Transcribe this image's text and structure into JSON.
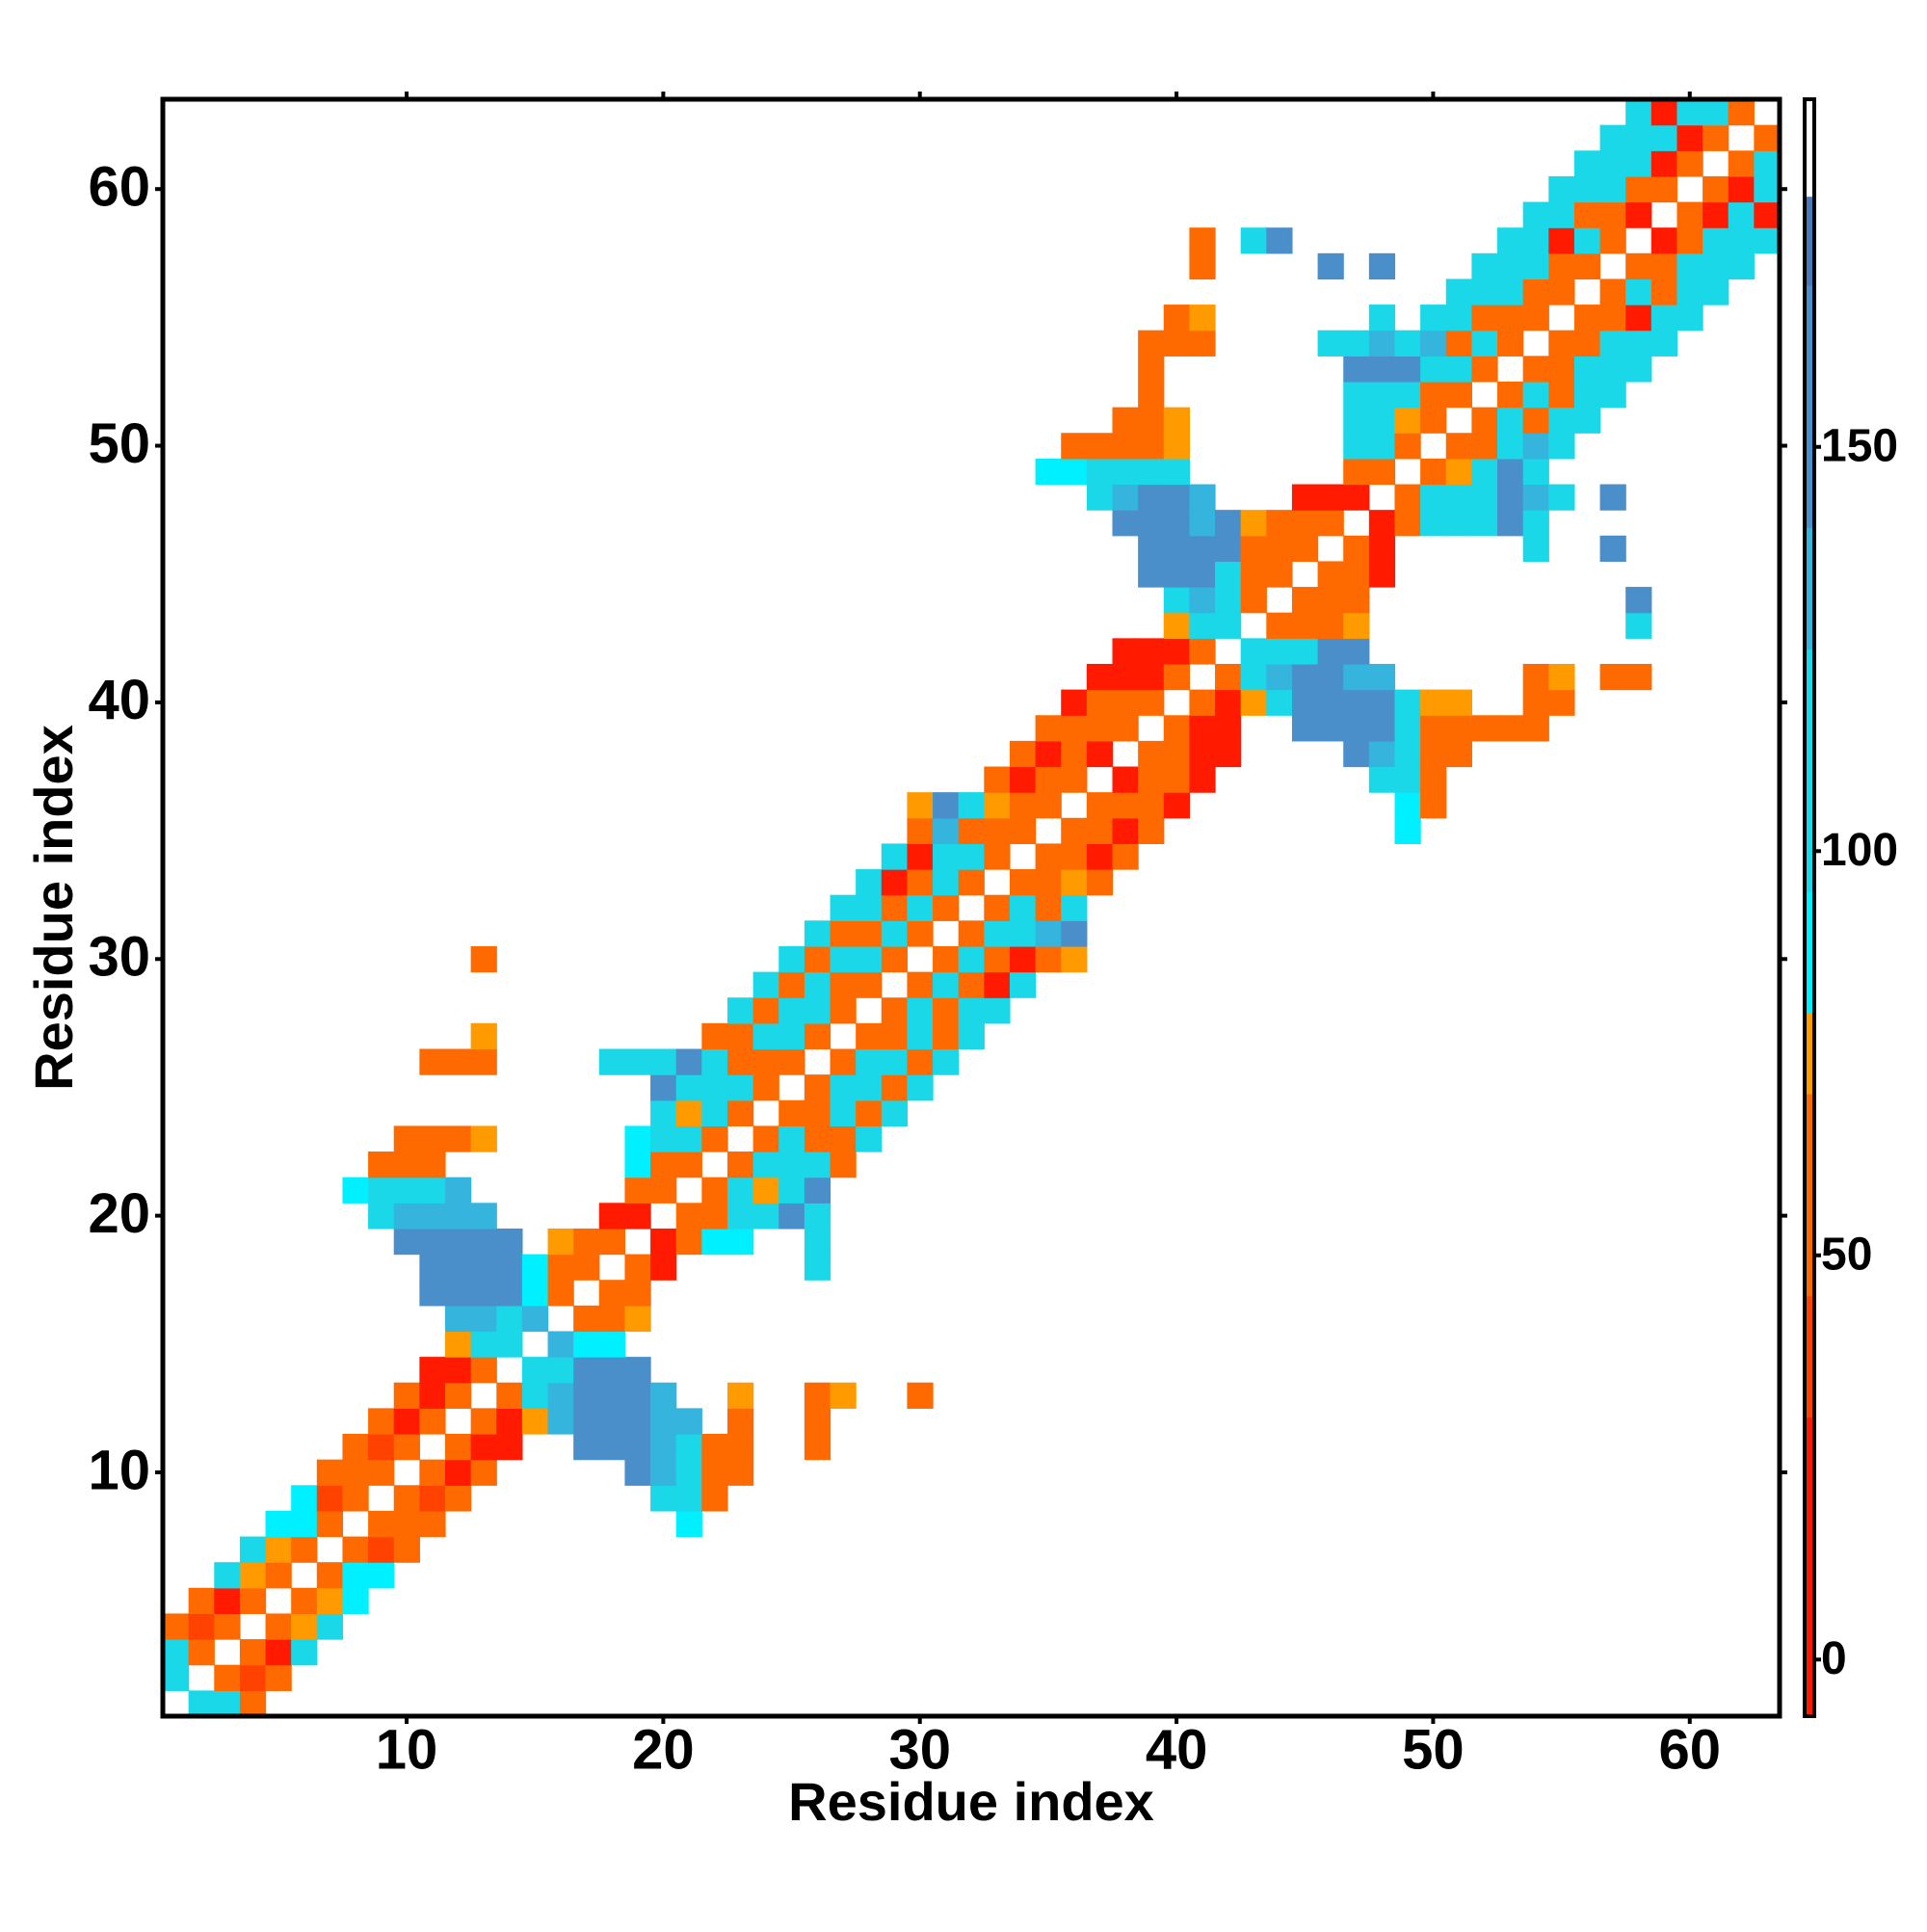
{
  "chart_data": {
    "type": "heatmap",
    "x_label": "Residue index",
    "y_label": "Residue index",
    "xlim": [
      0.5,
      63.5
    ],
    "ylim": [
      0.5,
      63.5
    ],
    "xticks": [
      10,
      20,
      30,
      40,
      50,
      60
    ],
    "yticks": [
      10,
      20,
      30,
      40,
      50,
      60
    ],
    "symmetric": true,
    "colorbar": {
      "lim": [
        -7,
        193
      ],
      "ticks": [
        0,
        50,
        100,
        150
      ],
      "bands": [
        {
          "from": -7,
          "to": 30,
          "color": "#ff1a00"
        },
        {
          "from": 30,
          "to": 45,
          "color": "#ff4200"
        },
        {
          "from": 45,
          "to": 70,
          "color": "#ff6a00"
        },
        {
          "from": 70,
          "to": 80,
          "color": "#ff9a00"
        },
        {
          "from": 80,
          "to": 95,
          "color": "#00f0ff"
        },
        {
          "from": 95,
          "to": 125,
          "color": "#1ad8e8"
        },
        {
          "from": 125,
          "to": 140,
          "color": "#35b4de"
        },
        {
          "from": 140,
          "to": 170,
          "color": "#4a8fca"
        },
        {
          "from": 170,
          "to": 181,
          "color": "#4a78b8"
        },
        {
          "from": 181,
          "to": 193,
          "color": "#ffffff"
        }
      ]
    },
    "cells": [
      [
        1,
        2,
        110
      ],
      [
        1,
        3,
        110
      ],
      [
        1,
        4,
        55
      ],
      [
        2,
        3,
        55
      ],
      [
        2,
        4,
        38
      ],
      [
        2,
        5,
        55
      ],
      [
        3,
        4,
        55
      ],
      [
        3,
        5,
        15
      ],
      [
        3,
        6,
        110
      ],
      [
        4,
        5,
        55
      ],
      [
        4,
        6,
        75
      ],
      [
        4,
        7,
        110
      ],
      [
        5,
        6,
        55
      ],
      [
        5,
        7,
        75
      ],
      [
        5,
        8,
        90
      ],
      [
        6,
        7,
        55
      ],
      [
        6,
        8,
        90
      ],
      [
        6,
        9,
        90
      ],
      [
        7,
        8,
        55
      ],
      [
        7,
        9,
        38
      ],
      [
        7,
        10,
        55
      ],
      [
        8,
        9,
        55
      ],
      [
        8,
        10,
        55
      ],
      [
        8,
        11,
        55
      ],
      [
        8,
        21,
        90
      ],
      [
        9,
        10,
        55
      ],
      [
        9,
        11,
        38
      ],
      [
        9,
        12,
        55
      ],
      [
        9,
        20,
        110
      ],
      [
        9,
        21,
        110
      ],
      [
        9,
        22,
        55
      ],
      [
        10,
        11,
        55
      ],
      [
        10,
        12,
        15
      ],
      [
        10,
        13,
        55
      ],
      [
        10,
        19,
        155
      ],
      [
        10,
        20,
        130
      ],
      [
        10,
        21,
        110
      ],
      [
        10,
        22,
        55
      ],
      [
        10,
        23,
        55
      ],
      [
        11,
        12,
        55
      ],
      [
        11,
        13,
        15
      ],
      [
        11,
        14,
        15
      ],
      [
        11,
        17,
        155
      ],
      [
        11,
        18,
        155
      ],
      [
        11,
        19,
        155
      ],
      [
        11,
        20,
        130
      ],
      [
        11,
        21,
        110
      ],
      [
        11,
        22,
        55
      ],
      [
        11,
        23,
        55
      ],
      [
        11,
        26,
        55
      ],
      [
        12,
        13,
        55
      ],
      [
        12,
        14,
        15
      ],
      [
        12,
        15,
        75
      ],
      [
        12,
        16,
        130
      ],
      [
        12,
        17,
        155
      ],
      [
        12,
        18,
        155
      ],
      [
        12,
        19,
        155
      ],
      [
        12,
        20,
        130
      ],
      [
        12,
        21,
        130
      ],
      [
        12,
        23,
        55
      ],
      [
        12,
        26,
        55
      ],
      [
        13,
        14,
        55
      ],
      [
        13,
        15,
        110
      ],
      [
        13,
        16,
        130
      ],
      [
        13,
        17,
        155
      ],
      [
        13,
        18,
        155
      ],
      [
        13,
        19,
        155
      ],
      [
        13,
        20,
        130
      ],
      [
        13,
        23,
        75
      ],
      [
        13,
        26,
        55
      ],
      [
        13,
        27,
        75
      ],
      [
        13,
        30,
        55
      ],
      [
        14,
        15,
        110
      ],
      [
        14,
        16,
        110
      ],
      [
        14,
        17,
        155
      ],
      [
        14,
        18,
        155
      ],
      [
        14,
        19,
        155
      ],
      [
        15,
        16,
        130
      ],
      [
        15,
        17,
        90
      ],
      [
        15,
        18,
        90
      ],
      [
        16,
        17,
        55
      ],
      [
        16,
        18,
        55
      ],
      [
        16,
        19,
        75
      ],
      [
        17,
        18,
        55
      ],
      [
        17,
        19,
        55
      ],
      [
        18,
        19,
        55
      ],
      [
        18,
        20,
        15
      ],
      [
        18,
        26,
        110
      ],
      [
        19,
        20,
        15
      ],
      [
        19,
        21,
        55
      ],
      [
        19,
        22,
        90
      ],
      [
        19,
        23,
        90
      ],
      [
        19,
        26,
        110
      ],
      [
        20,
        21,
        55
      ],
      [
        20,
        22,
        55
      ],
      [
        20,
        23,
        110
      ],
      [
        20,
        24,
        110
      ],
      [
        20,
        25,
        155
      ],
      [
        20,
        26,
        110
      ],
      [
        21,
        22,
        55
      ],
      [
        21,
        23,
        110
      ],
      [
        21,
        24,
        75
      ],
      [
        21,
        25,
        110
      ],
      [
        21,
        26,
        155
      ],
      [
        22,
        23,
        55
      ],
      [
        22,
        24,
        110
      ],
      [
        22,
        25,
        110
      ],
      [
        22,
        26,
        110
      ],
      [
        22,
        27,
        55
      ],
      [
        23,
        24,
        55
      ],
      [
        23,
        25,
        110
      ],
      [
        23,
        26,
        55
      ],
      [
        23,
        27,
        55
      ],
      [
        23,
        28,
        110
      ],
      [
        24,
        25,
        55
      ],
      [
        24,
        26,
        55
      ],
      [
        24,
        27,
        110
      ],
      [
        24,
        28,
        55
      ],
      [
        24,
        29,
        110
      ],
      [
        25,
        26,
        55
      ],
      [
        25,
        27,
        110
      ],
      [
        25,
        28,
        110
      ],
      [
        25,
        29,
        55
      ],
      [
        25,
        30,
        110
      ],
      [
        26,
        27,
        55
      ],
      [
        26,
        28,
        110
      ],
      [
        26,
        29,
        110
      ],
      [
        26,
        30,
        55
      ],
      [
        26,
        31,
        110
      ],
      [
        27,
        28,
        55
      ],
      [
        27,
        29,
        55
      ],
      [
        27,
        30,
        110
      ],
      [
        27,
        31,
        55
      ],
      [
        27,
        32,
        110
      ],
      [
        28,
        29,
        55
      ],
      [
        28,
        30,
        110
      ],
      [
        28,
        31,
        55
      ],
      [
        28,
        32,
        110
      ],
      [
        28,
        33,
        110
      ],
      [
        29,
        30,
        55
      ],
      [
        29,
        31,
        110
      ],
      [
        29,
        32,
        55
      ],
      [
        29,
        33,
        15
      ],
      [
        29,
        34,
        110
      ],
      [
        30,
        31,
        55
      ],
      [
        30,
        32,
        110
      ],
      [
        30,
        33,
        55
      ],
      [
        30,
        34,
        15
      ],
      [
        30,
        35,
        55
      ],
      [
        30,
        36,
        75
      ],
      [
        31,
        32,
        55
      ],
      [
        31,
        33,
        110
      ],
      [
        31,
        34,
        110
      ],
      [
        31,
        35,
        130
      ],
      [
        31,
        36,
        155
      ],
      [
        32,
        33,
        55
      ],
      [
        32,
        34,
        110
      ],
      [
        32,
        35,
        55
      ],
      [
        32,
        36,
        110
      ],
      [
        33,
        34,
        55
      ],
      [
        33,
        35,
        55
      ],
      [
        33,
        36,
        75
      ],
      [
        33,
        37,
        55
      ],
      [
        34,
        35,
        55
      ],
      [
        34,
        36,
        55
      ],
      [
        34,
        37,
        15
      ],
      [
        34,
        38,
        55
      ],
      [
        35,
        36,
        55
      ],
      [
        35,
        37,
        55
      ],
      [
        35,
        38,
        15
      ],
      [
        35,
        39,
        55
      ],
      [
        35,
        49,
        90
      ],
      [
        36,
        37,
        55
      ],
      [
        36,
        38,
        55
      ],
      [
        36,
        39,
        55
      ],
      [
        36,
        40,
        15
      ],
      [
        36,
        49,
        90
      ],
      [
        36,
        50,
        55
      ],
      [
        37,
        38,
        15
      ],
      [
        37,
        39,
        55
      ],
      [
        37,
        40,
        55
      ],
      [
        37,
        41,
        15
      ],
      [
        37,
        48,
        110
      ],
      [
        37,
        49,
        110
      ],
      [
        37,
        50,
        55
      ],
      [
        38,
        39,
        55
      ],
      [
        38,
        40,
        55
      ],
      [
        38,
        41,
        15
      ],
      [
        38,
        42,
        15
      ],
      [
        38,
        47,
        155
      ],
      [
        38,
        48,
        130
      ],
      [
        38,
        49,
        110
      ],
      [
        38,
        50,
        55
      ],
      [
        38,
        51,
        55
      ],
      [
        39,
        40,
        55
      ],
      [
        39,
        41,
        15
      ],
      [
        39,
        42,
        15
      ],
      [
        39,
        45,
        155
      ],
      [
        39,
        46,
        155
      ],
      [
        39,
        47,
        155
      ],
      [
        39,
        48,
        155
      ],
      [
        39,
        49,
        110
      ],
      [
        39,
        50,
        55
      ],
      [
        39,
        51,
        55
      ],
      [
        39,
        52,
        55
      ],
      [
        39,
        53,
        55
      ],
      [
        39,
        54,
        55
      ],
      [
        40,
        41,
        55
      ],
      [
        40,
        42,
        15
      ],
      [
        40,
        43,
        75
      ],
      [
        40,
        44,
        110
      ],
      [
        40,
        45,
        155
      ],
      [
        40,
        46,
        155
      ],
      [
        40,
        47,
        155
      ],
      [
        40,
        48,
        155
      ],
      [
        40,
        49,
        110
      ],
      [
        40,
        50,
        75
      ],
      [
        40,
        51,
        75
      ],
      [
        40,
        54,
        55
      ],
      [
        40,
        55,
        55
      ],
      [
        41,
        42,
        55
      ],
      [
        41,
        43,
        110
      ],
      [
        41,
        44,
        130
      ],
      [
        41,
        45,
        155
      ],
      [
        41,
        46,
        155
      ],
      [
        41,
        47,
        130
      ],
      [
        41,
        48,
        130
      ],
      [
        41,
        54,
        55
      ],
      [
        41,
        55,
        75
      ],
      [
        41,
        57,
        55
      ],
      [
        41,
        58,
        55
      ],
      [
        42,
        43,
        110
      ],
      [
        42,
        44,
        110
      ],
      [
        42,
        45,
        110
      ],
      [
        42,
        46,
        155
      ],
      [
        42,
        47,
        155
      ],
      [
        43,
        44,
        55
      ],
      [
        43,
        45,
        55
      ],
      [
        43,
        46,
        55
      ],
      [
        43,
        47,
        75
      ],
      [
        43,
        58,
        110
      ],
      [
        44,
        45,
        55
      ],
      [
        44,
        46,
        55
      ],
      [
        44,
        47,
        55
      ],
      [
        44,
        58,
        155
      ],
      [
        45,
        46,
        55
      ],
      [
        45,
        47,
        55
      ],
      [
        45,
        48,
        15
      ],
      [
        46,
        47,
        55
      ],
      [
        46,
        48,
        15
      ],
      [
        46,
        54,
        110
      ],
      [
        46,
        57,
        155
      ],
      [
        47,
        48,
        15
      ],
      [
        47,
        49,
        55
      ],
      [
        47,
        50,
        110
      ],
      [
        47,
        51,
        110
      ],
      [
        47,
        52,
        110
      ],
      [
        47,
        53,
        155
      ],
      [
        47,
        54,
        110
      ],
      [
        48,
        49,
        55
      ],
      [
        48,
        50,
        110
      ],
      [
        48,
        51,
        110
      ],
      [
        48,
        52,
        110
      ],
      [
        48,
        53,
        155
      ],
      [
        48,
        54,
        130
      ],
      [
        48,
        55,
        110
      ],
      [
        48,
        57,
        155
      ],
      [
        49,
        50,
        55
      ],
      [
        49,
        51,
        75
      ],
      [
        49,
        52,
        110
      ],
      [
        49,
        53,
        155
      ],
      [
        49,
        54,
        110
      ],
      [
        50,
        51,
        55
      ],
      [
        50,
        52,
        55
      ],
      [
        50,
        53,
        110
      ],
      [
        50,
        54,
        130
      ],
      [
        50,
        55,
        110
      ],
      [
        51,
        52,
        55
      ],
      [
        51,
        53,
        110
      ],
      [
        51,
        54,
        55
      ],
      [
        51,
        55,
        110
      ],
      [
        51,
        56,
        110
      ],
      [
        52,
        53,
        55
      ],
      [
        52,
        54,
        110
      ],
      [
        52,
        55,
        55
      ],
      [
        52,
        56,
        110
      ],
      [
        52,
        57,
        110
      ],
      [
        53,
        54,
        55
      ],
      [
        53,
        55,
        55
      ],
      [
        53,
        56,
        110
      ],
      [
        53,
        57,
        110
      ],
      [
        53,
        58,
        110
      ],
      [
        54,
        55,
        55
      ],
      [
        54,
        56,
        55
      ],
      [
        54,
        57,
        110
      ],
      [
        54,
        58,
        110
      ],
      [
        54,
        59,
        110
      ],
      [
        55,
        56,
        55
      ],
      [
        55,
        57,
        55
      ],
      [
        55,
        58,
        15
      ],
      [
        55,
        59,
        110
      ],
      [
        55,
        60,
        110
      ],
      [
        56,
        57,
        55
      ],
      [
        56,
        58,
        110
      ],
      [
        56,
        59,
        55
      ],
      [
        56,
        60,
        110
      ],
      [
        56,
        61,
        110
      ],
      [
        57,
        58,
        55
      ],
      [
        57,
        59,
        55
      ],
      [
        57,
        60,
        110
      ],
      [
        57,
        61,
        110
      ],
      [
        57,
        62,
        110
      ],
      [
        58,
        59,
        15
      ],
      [
        58,
        60,
        55
      ],
      [
        58,
        61,
        110
      ],
      [
        58,
        62,
        110
      ],
      [
        58,
        63,
        110
      ],
      [
        59,
        60,
        55
      ],
      [
        59,
        61,
        15
      ],
      [
        59,
        62,
        110
      ],
      [
        59,
        63,
        15
      ],
      [
        60,
        61,
        55
      ],
      [
        60,
        62,
        15
      ],
      [
        60,
        63,
        110
      ],
      [
        61,
        62,
        55
      ],
      [
        61,
        63,
        110
      ],
      [
        62,
        63,
        55
      ]
    ]
  }
}
